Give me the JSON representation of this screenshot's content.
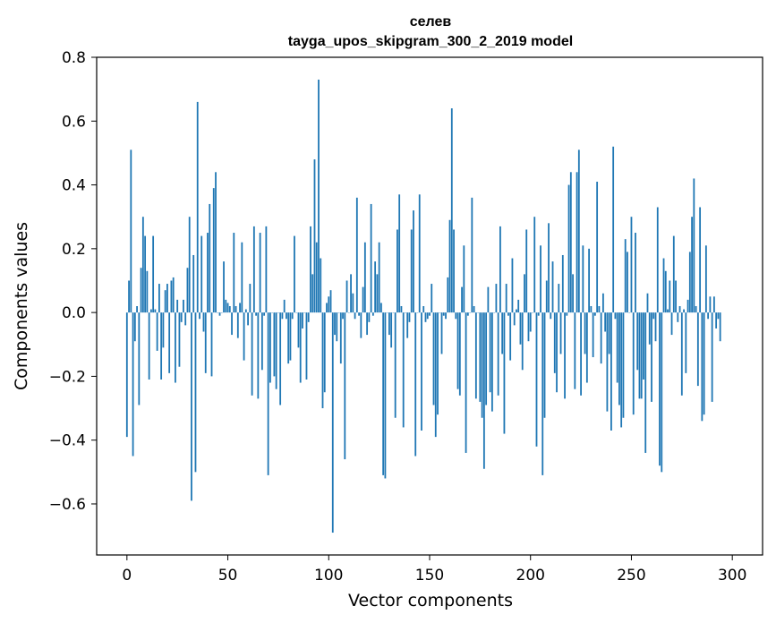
{
  "chart_data": {
    "type": "bar",
    "title": "селев",
    "subtitle": "tayga_upos_skipgram_300_2_2019 model",
    "xlabel": "Vector components",
    "ylabel": "Components values",
    "xlim": [
      -15,
      315
    ],
    "ylim": [
      -0.76,
      0.8
    ],
    "xticks": [
      0,
      50,
      100,
      150,
      200,
      250,
      300
    ],
    "yticks": [
      -0.6,
      -0.4,
      -0.2,
      0.0,
      0.2,
      0.4,
      0.6,
      0.8
    ],
    "xtick_labels": [
      "0",
      "50",
      "100",
      "150",
      "200",
      "250",
      "300"
    ],
    "ytick_labels": [
      "−0.6",
      "−0.4",
      "−0.2",
      "0.0",
      "0.2",
      "0.4",
      "0.6",
      "0.8"
    ],
    "bar_color": "#1f77b4",
    "grid": false,
    "values": [
      -0.39,
      0.1,
      0.51,
      -0.45,
      -0.09,
      0.02,
      -0.29,
      0.14,
      0.3,
      0.24,
      0.13,
      -0.21,
      0.01,
      0.24,
      0.01,
      -0.12,
      0.09,
      -0.21,
      -0.11,
      0.07,
      0.09,
      -0.19,
      0.1,
      0.11,
      -0.22,
      0.04,
      -0.17,
      -0.03,
      0.04,
      -0.04,
      0.14,
      0.3,
      -0.59,
      0.18,
      -0.5,
      0.66,
      -0.02,
      0.24,
      -0.06,
      -0.19,
      0.25,
      0.34,
      -0.2,
      0.39,
      0.44,
      0.0,
      -0.01,
      0.0,
      0.16,
      0.04,
      0.03,
      0.02,
      -0.07,
      0.25,
      0.02,
      -0.08,
      0.03,
      0.22,
      -0.15,
      0.01,
      -0.04,
      0.09,
      -0.26,
      0.27,
      -0.01,
      -0.27,
      0.25,
      -0.18,
      -0.01,
      0.27,
      -0.51,
      -0.22,
      0.0,
      -0.2,
      -0.24,
      0.0,
      -0.29,
      -0.02,
      0.04,
      -0.02,
      -0.16,
      -0.15,
      -0.02,
      0.24,
      0.0,
      -0.11,
      -0.22,
      -0.05,
      0.0,
      -0.21,
      -0.03,
      0.27,
      0.12,
      0.48,
      0.22,
      0.73,
      0.17,
      -0.3,
      -0.25,
      0.03,
      0.05,
      0.07,
      -0.69,
      -0.07,
      -0.09,
      0.0,
      -0.16,
      -0.02,
      -0.46,
      0.1,
      0.0,
      0.12,
      0.06,
      -0.02,
      0.36,
      -0.01,
      -0.08,
      0.08,
      0.22,
      -0.07,
      -0.03,
      0.34,
      -0.01,
      0.16,
      0.12,
      0.22,
      0.03,
      -0.51,
      -0.52,
      0.0,
      -0.07,
      -0.11,
      0.0,
      -0.33,
      0.26,
      0.37,
      0.02,
      -0.36,
      0.0,
      -0.08,
      -0.03,
      0.26,
      0.32,
      -0.45,
      0.0,
      0.37,
      -0.37,
      0.02,
      -0.03,
      -0.02,
      -0.01,
      0.09,
      -0.29,
      -0.39,
      -0.32,
      0.0,
      -0.13,
      -0.01,
      -0.02,
      0.11,
      0.29,
      0.64,
      0.26,
      -0.02,
      -0.24,
      -0.26,
      0.08,
      0.21,
      -0.44,
      -0.01,
      0.0,
      0.36,
      0.02,
      -0.27,
      0.0,
      -0.28,
      -0.33,
      -0.49,
      -0.29,
      0.08,
      -0.25,
      -0.31,
      0.0,
      0.09,
      -0.26,
      0.27,
      -0.13,
      -0.38,
      0.09,
      -0.01,
      -0.15,
      0.17,
      -0.04,
      0.01,
      0.04,
      -0.1,
      -0.18,
      0.12,
      0.26,
      -0.09,
      -0.06,
      0.0,
      0.3,
      -0.42,
      -0.01,
      0.21,
      -0.51,
      -0.33,
      0.1,
      0.28,
      -0.02,
      0.16,
      -0.19,
      -0.25,
      0.09,
      -0.13,
      0.18,
      -0.27,
      -0.01,
      0.4,
      0.44,
      0.12,
      -0.24,
      0.44,
      0.51,
      -0.26,
      0.21,
      -0.13,
      -0.22,
      0.2,
      0.02,
      -0.14,
      -0.01,
      0.41,
      0.02,
      -0.16,
      0.06,
      -0.06,
      -0.31,
      -0.13,
      -0.37,
      0.52,
      -0.02,
      -0.22,
      -0.29,
      -0.36,
      -0.33,
      0.23,
      0.19,
      0.0,
      0.3,
      -0.32,
      0.25,
      -0.18,
      -0.27,
      -0.27,
      -0.21,
      -0.44,
      0.06,
      -0.1,
      -0.28,
      -0.02,
      -0.09,
      0.33,
      -0.48,
      -0.5,
      0.17,
      0.13,
      0.01,
      0.1,
      -0.07,
      0.24,
      0.1,
      -0.03,
      0.02,
      -0.26,
      0.01,
      -0.19,
      0.04,
      0.19,
      0.3,
      0.42,
      0.02,
      -0.23,
      0.33,
      -0.34,
      -0.32,
      0.21,
      -0.02,
      0.05,
      -0.28,
      0.05,
      -0.05,
      -0.02,
      -0.09
    ]
  }
}
